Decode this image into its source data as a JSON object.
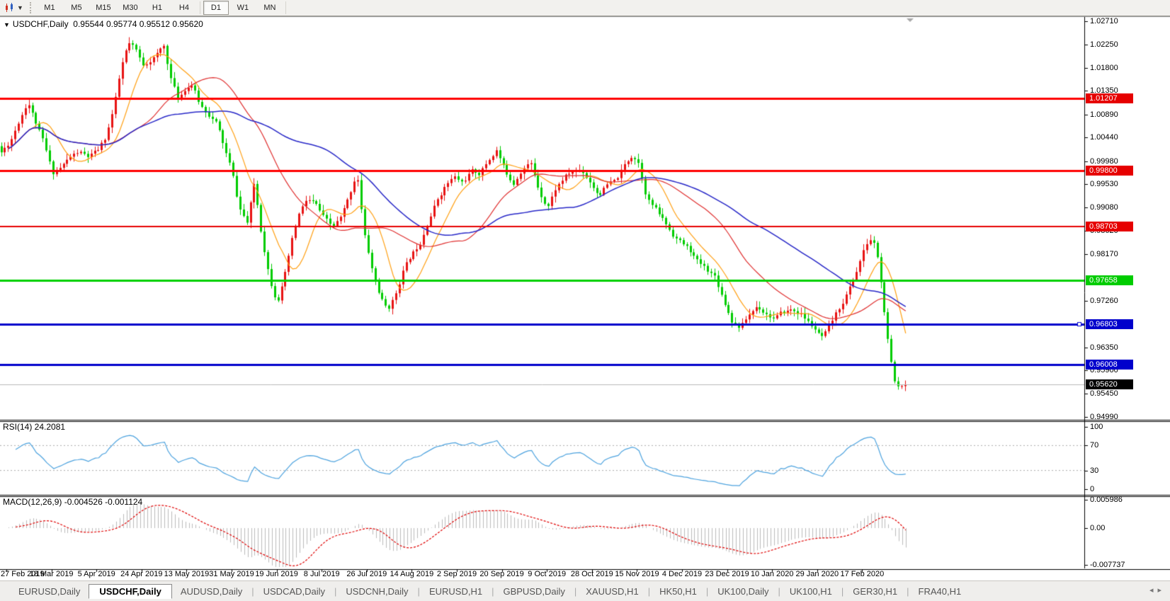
{
  "toolbar": {
    "timeframes": [
      "M1",
      "M5",
      "M15",
      "M30",
      "H1",
      "H4",
      "D1",
      "W1",
      "MN"
    ],
    "active_timeframe": "D1"
  },
  "icons": {
    "collapse_arrow": "▼",
    "dropdown_caret": "▼",
    "shift_marker": "▼",
    "tab_scroll_left": "◂",
    "tab_scroll_right": "▸"
  },
  "chart": {
    "title_symbol": "USDCHF,Daily",
    "title_ohlc": "0.95544 0.95774 0.95512 0.95620"
  },
  "colors": {
    "up_candle": "#e81212",
    "down_candle": "#00cc00",
    "ma_fast": "#ffa013",
    "ma_mid": "#e03030",
    "ma_slow": "#2828c8",
    "line_red": "#ff0000",
    "line_green": "#00d000",
    "line_blue": "#0000cc",
    "bid_line": "#b9b9b9",
    "bid_label_bg": "#000000",
    "rsi_line": "#4da3df",
    "rsi_level_dash": "#aaaaaa",
    "macd_hist": "#bbbbbb",
    "macd_signal": "#e00000"
  },
  "price_axis": {
    "ticks": [
      "1.02710",
      "1.02250",
      "1.01800",
      "1.01350",
      "1.00890",
      "1.00440",
      "0.99980",
      "0.99530",
      "0.99080",
      "0.98620",
      "0.98170",
      "0.97260",
      "0.96350",
      "0.95900",
      "0.95450",
      "0.94990"
    ],
    "line_labels": [
      {
        "text": "1.01207",
        "bg": "#e60000"
      },
      {
        "text": "0.99800",
        "bg": "#e60000"
      },
      {
        "text": "0.98703",
        "bg": "#e60000"
      },
      {
        "text": "0.97658",
        "bg": "#00cc00"
      },
      {
        "text": "0.96803",
        "bg": "#0000cc"
      },
      {
        "text": "0.96008",
        "bg": "#0000cc"
      }
    ],
    "bid_label": "0.95620"
  },
  "h_lines": [
    {
      "price": 1.01207,
      "color": "#ff0000",
      "width": 3
    },
    {
      "price": 0.998,
      "color": "#ff0000",
      "width": 3
    },
    {
      "price": 0.98703,
      "color": "#e60000",
      "width": 2
    },
    {
      "price": 0.97658,
      "color": "#00d000",
      "width": 3
    },
    {
      "price": 0.96803,
      "color": "#0000cc",
      "width": 3,
      "handle": true
    },
    {
      "price": 0.96008,
      "color": "#0000cc",
      "width": 3
    }
  ],
  "bid_price": 0.9562,
  "rsi": {
    "label": "RSI(14) 24.2081",
    "axis_ticks": [
      "100",
      "70",
      "30",
      "0"
    ],
    "levels": [
      70,
      30
    ],
    "value": 24.2081
  },
  "macd": {
    "label": "MACD(12,26,9) -0.004526 -0.001124",
    "axis_ticks": [
      {
        "text": "0.005986",
        "value": 0.005986
      },
      {
        "text": "0.00",
        "value": 0
      },
      {
        "text": "-0.007737",
        "value": -0.007737
      }
    ],
    "values": [
      -0.004526,
      -0.001124
    ]
  },
  "date_axis": {
    "labels": [
      "27 Feb 2019",
      "18 Mar 2019",
      "5 Apr 2019",
      "24 Apr 2019",
      "13 May 2019",
      "31 May 2019",
      "19 Jun 2019",
      "8 Jul 2019",
      "26 Jul 2019",
      "14 Aug 2019",
      "2 Sep 2019",
      "20 Sep 2019",
      "9 Oct 2019",
      "28 Oct 2019",
      "15 Nov 2019",
      "4 Dec 2019",
      "23 Dec 2019",
      "10 Jan 2020",
      "29 Jan 2020",
      "17 Feb 2020"
    ]
  },
  "tabs": {
    "items": [
      "EURUSD,Daily",
      "USDCHF,Daily",
      "AUDUSD,Daily",
      "USDCAD,Daily",
      "USDCNH,Daily",
      "EURUSD,H1",
      "GBPUSD,Daily",
      "XAUUSD,H1",
      "HK50,H1",
      "UK100,Daily",
      "UK100,H1",
      "GER30,H1",
      "FRA40,H1"
    ],
    "active_index": 1
  },
  "chart_data": {
    "type": "candlestick",
    "symbol": "USDCHF",
    "timeframe": "Daily",
    "last_bar_ohlc": {
      "open": "0.95544",
      "high": "0.95774",
      "low": "0.95512",
      "close": "0.95620"
    },
    "ylim": [
      0.94949,
      1.02793
    ],
    "candle_count": 262,
    "seed": 11,
    "note": "red = bullish, green = bearish; close_path = [x_px, price] anchors of daily closes Feb 2019 - Feb 2020",
    "close_path": [
      [
        0,
        1.0011
      ],
      [
        15,
        1.0036
      ],
      [
        30,
        1.0085
      ],
      [
        40,
        1.0116
      ],
      [
        50,
        1.0078
      ],
      [
        62,
        1.0036
      ],
      [
        75,
        0.9974
      ],
      [
        88,
        0.9988
      ],
      [
        100,
        1.0006
      ],
      [
        112,
        1.0016
      ],
      [
        125,
        1.0006
      ],
      [
        138,
        1.0016
      ],
      [
        150,
        1.0043
      ],
      [
        162,
        1.0105
      ],
      [
        172,
        1.0181
      ],
      [
        182,
        1.0227
      ],
      [
        192,
        1.0216
      ],
      [
        202,
        1.0185
      ],
      [
        212,
        1.0195
      ],
      [
        222,
        1.0205
      ],
      [
        232,
        1.0224
      ],
      [
        242,
        1.0161
      ],
      [
        252,
        1.0119
      ],
      [
        262,
        1.014
      ],
      [
        272,
        1.0149
      ],
      [
        283,
        1.0108
      ],
      [
        295,
        1.0091
      ],
      [
        307,
        1.0071
      ],
      [
        318,
        1.0022
      ],
      [
        328,
        0.9981
      ],
      [
        338,
        0.9909
      ],
      [
        350,
        0.9877
      ],
      [
        360,
        0.9956
      ],
      [
        370,
        0.9857
      ],
      [
        382,
        0.9767
      ],
      [
        392,
        0.9725
      ],
      [
        402,
        0.9767
      ],
      [
        412,
        0.9836
      ],
      [
        422,
        0.9891
      ],
      [
        434,
        0.9923
      ],
      [
        446,
        0.9915
      ],
      [
        458,
        0.9887
      ],
      [
        470,
        0.9868
      ],
      [
        482,
        0.9887
      ],
      [
        494,
        0.9928
      ],
      [
        505,
        0.9978
      ],
      [
        515,
        0.9857
      ],
      [
        527,
        0.9781
      ],
      [
        538,
        0.9732
      ],
      [
        548,
        0.9708
      ],
      [
        558,
        0.9732
      ],
      [
        570,
        0.9785
      ],
      [
        582,
        0.9815
      ],
      [
        593,
        0.9836
      ],
      [
        605,
        0.9882
      ],
      [
        618,
        0.9923
      ],
      [
        630,
        0.9951
      ],
      [
        642,
        0.9967
      ],
      [
        654,
        0.9956
      ],
      [
        666,
        0.9978
      ],
      [
        678,
        0.9974
      ],
      [
        690,
        0.9998
      ],
      [
        702,
        1.002
      ],
      [
        714,
        0.9978
      ],
      [
        726,
        0.9956
      ],
      [
        738,
        0.9984
      ],
      [
        750,
        0.9995
      ],
      [
        762,
        0.9942
      ],
      [
        774,
        0.9909
      ],
      [
        786,
        0.9947
      ],
      [
        798,
        0.9967
      ],
      [
        810,
        0.9978
      ],
      [
        822,
        0.9981
      ],
      [
        834,
        0.9959
      ],
      [
        846,
        0.9933
      ],
      [
        858,
        0.9951
      ],
      [
        870,
        0.9959
      ],
      [
        882,
        0.9988
      ],
      [
        894,
        1.0011
      ],
      [
        902,
        0.9998
      ],
      [
        914,
        0.9928
      ],
      [
        926,
        0.9905
      ],
      [
        938,
        0.9882
      ],
      [
        950,
        0.9857
      ],
      [
        962,
        0.984
      ],
      [
        974,
        0.9826
      ],
      [
        986,
        0.9801
      ],
      [
        998,
        0.9788
      ],
      [
        1010,
        0.9774
      ],
      [
        1022,
        0.973
      ],
      [
        1034,
        0.9688
      ],
      [
        1046,
        0.9674
      ],
      [
        1058,
        0.9698
      ],
      [
        1070,
        0.9716
      ],
      [
        1082,
        0.9702
      ],
      [
        1094,
        0.9691
      ],
      [
        1106,
        0.9702
      ],
      [
        1118,
        0.9708
      ],
      [
        1130,
        0.9702
      ],
      [
        1142,
        0.9684
      ],
      [
        1152,
        0.967
      ],
      [
        1160,
        0.9652
      ],
      [
        1168,
        0.9663
      ],
      [
        1178,
        0.9691
      ],
      [
        1188,
        0.9716
      ],
      [
        1198,
        0.9744
      ],
      [
        1208,
        0.9774
      ],
      [
        1216,
        0.9807
      ],
      [
        1224,
        0.9835
      ],
      [
        1231,
        0.9846
      ],
      [
        1238,
        0.9829
      ],
      [
        1244,
        0.9767
      ],
      [
        1250,
        0.9698
      ],
      [
        1256,
        0.9629
      ],
      [
        1262,
        0.9578
      ],
      [
        1267,
        0.955
      ],
      [
        1272,
        0.9569
      ],
      [
        1277,
        0.955
      ],
      [
        1281,
        0.9562
      ]
    ],
    "moving_averages": [
      {
        "period": 10,
        "color_key": "ma_fast"
      },
      {
        "period": 30,
        "color_key": "ma_mid"
      },
      {
        "period": 62,
        "color_key": "ma_slow"
      }
    ],
    "horizontal_levels": [
      1.01207,
      0.998,
      0.98703,
      0.97658,
      0.96803,
      0.96008
    ],
    "bid": 0.9562
  }
}
